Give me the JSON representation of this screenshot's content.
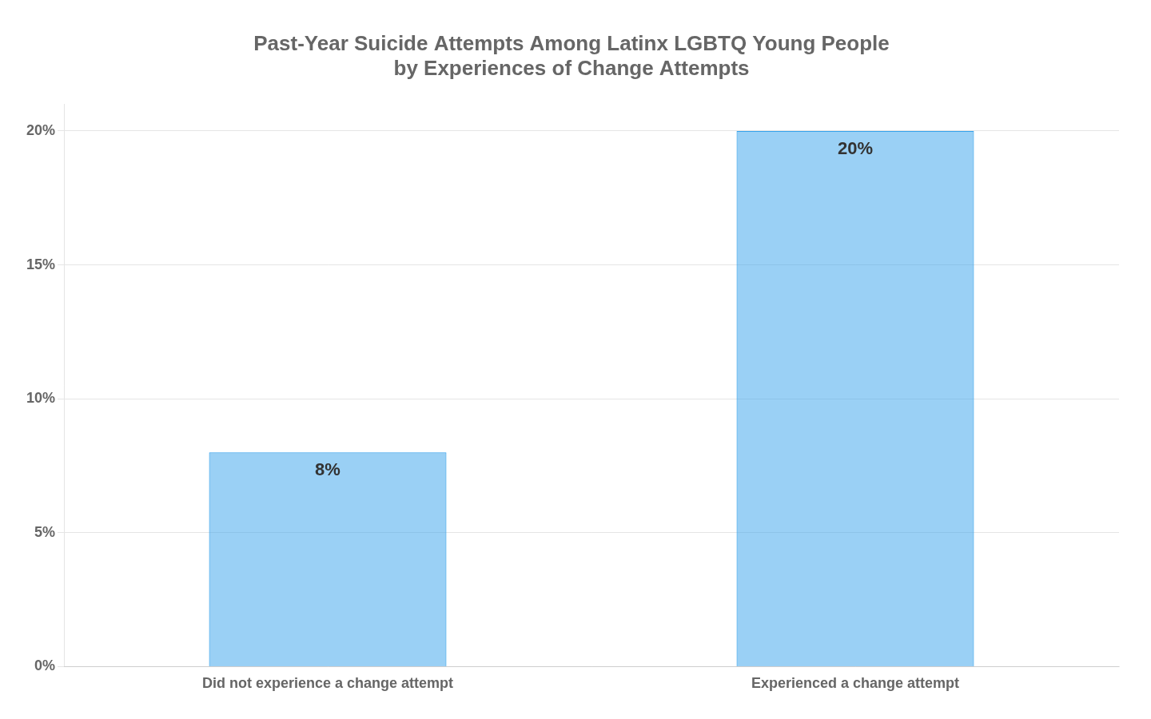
{
  "chart_data": {
    "type": "bar",
    "title": "Past-Year Suicide Attempts Among Latinx LGBTQ Young People\nby Experiences of Change Attempts",
    "categories": [
      "Did not experience a change attempt",
      "Experienced a change attempt"
    ],
    "values": [
      8,
      20
    ],
    "value_labels": [
      "8%",
      "20%"
    ],
    "data_labels": true,
    "ylim": [
      0,
      21
    ],
    "yticks": [
      {
        "value": 0,
        "label": "0%"
      },
      {
        "value": 5,
        "label": "5%"
      },
      {
        "value": 10,
        "label": "10%"
      },
      {
        "value": 15,
        "label": "15%"
      },
      {
        "value": 20,
        "label": "20%"
      }
    ],
    "grid": true
  }
}
